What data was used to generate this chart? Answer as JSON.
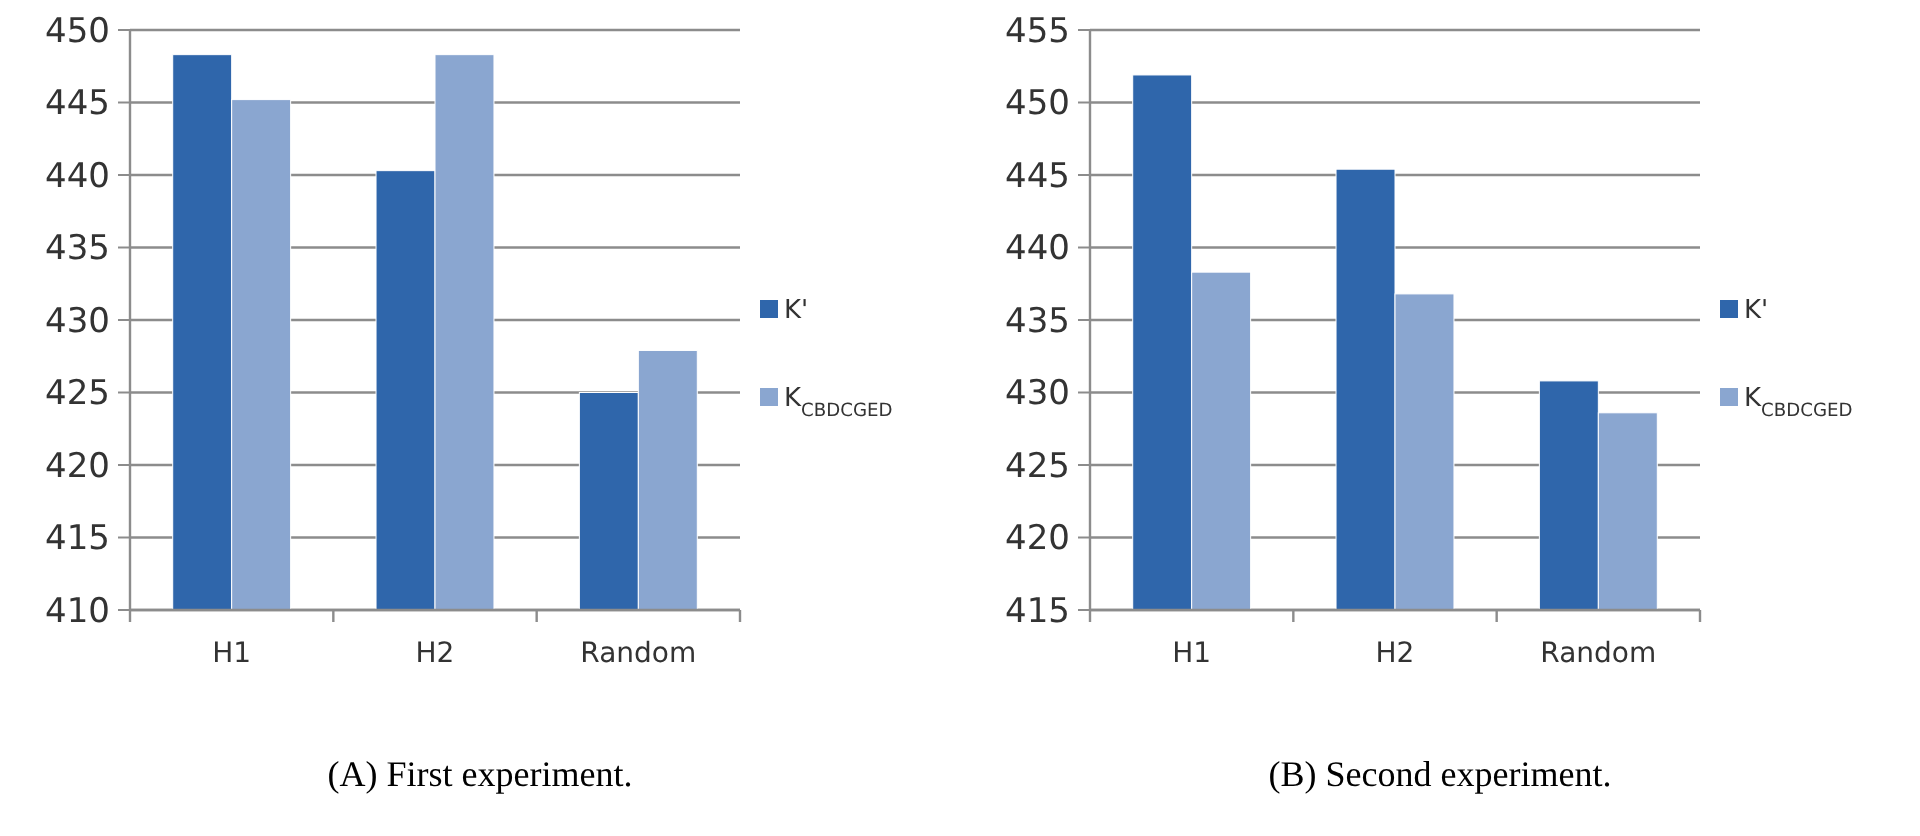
{
  "chart_data": [
    {
      "type": "bar",
      "title": "(A) First experiment.",
      "categories": [
        "H1",
        "H2",
        "Random"
      ],
      "series": [
        {
          "name": "K'",
          "color": "#2f66ab",
          "values": [
            448.3,
            440.3,
            425.0
          ]
        },
        {
          "name": "K$_{CBDCGED}$",
          "color": "#8aa6d0",
          "values": [
            445.2,
            448.3,
            427.9
          ]
        }
      ],
      "ylim": [
        410,
        450
      ],
      "yticks": [
        410,
        415,
        420,
        425,
        430,
        435,
        440,
        445,
        450
      ],
      "grid": "y",
      "legend": "right"
    },
    {
      "type": "bar",
      "title": "(B) Second experiment.",
      "categories": [
        "H1",
        "H2",
        "Random"
      ],
      "series": [
        {
          "name": "K'",
          "color": "#2f66ab",
          "values": [
            451.9,
            445.4,
            430.8
          ]
        },
        {
          "name": "K$_{CBDCGED}$",
          "color": "#8aa6d0",
          "values": [
            438.3,
            436.8,
            428.6
          ]
        }
      ],
      "ylim": [
        415,
        455
      ],
      "yticks": [
        415,
        420,
        425,
        430,
        435,
        440,
        445,
        450,
        455
      ],
      "grid": "y",
      "legend": "right"
    }
  ]
}
